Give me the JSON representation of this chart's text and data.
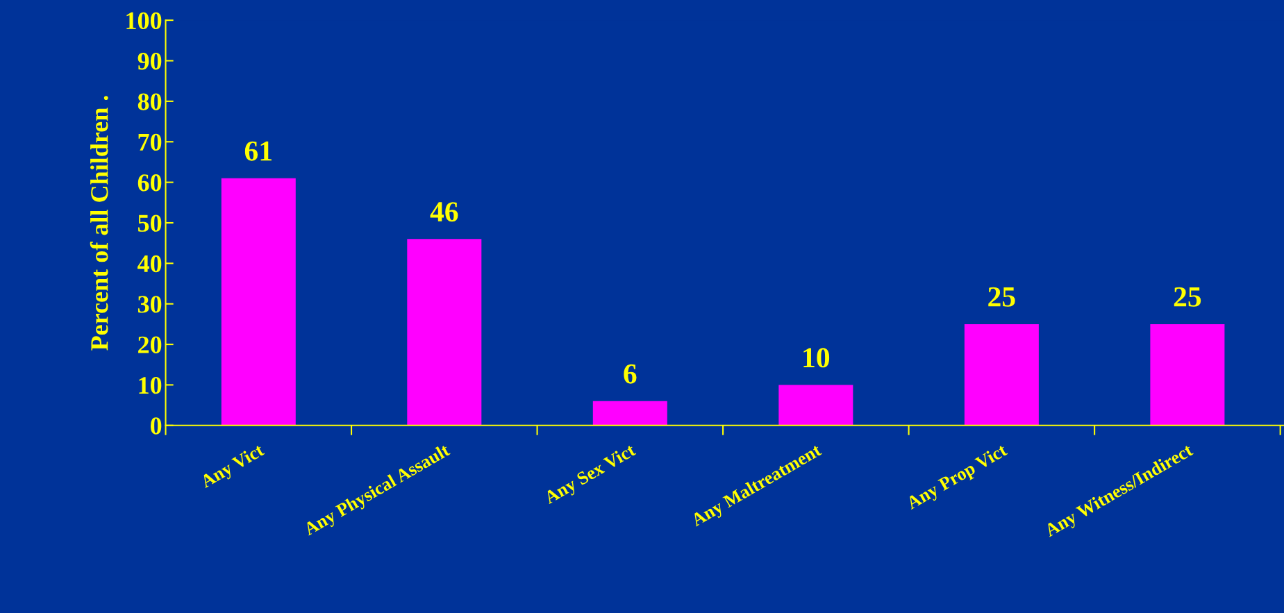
{
  "chart_data": {
    "type": "bar",
    "ylabel": "Percent of all Children .",
    "categories": [
      "Any Vict",
      "Any Physical Assault",
      "Any Sex Vict",
      "Any Maltreatment",
      "Any Prop Vict",
      "Any Witness/Indirect"
    ],
    "values": [
      61,
      46,
      6,
      10,
      25,
      25
    ],
    "color": "#ff00ff",
    "ylim": [
      0,
      100
    ],
    "yticks": [
      0,
      10,
      20,
      30,
      40,
      50,
      60,
      70,
      80,
      90,
      100
    ],
    "data_labels": true,
    "grid": false,
    "legend": false
  }
}
